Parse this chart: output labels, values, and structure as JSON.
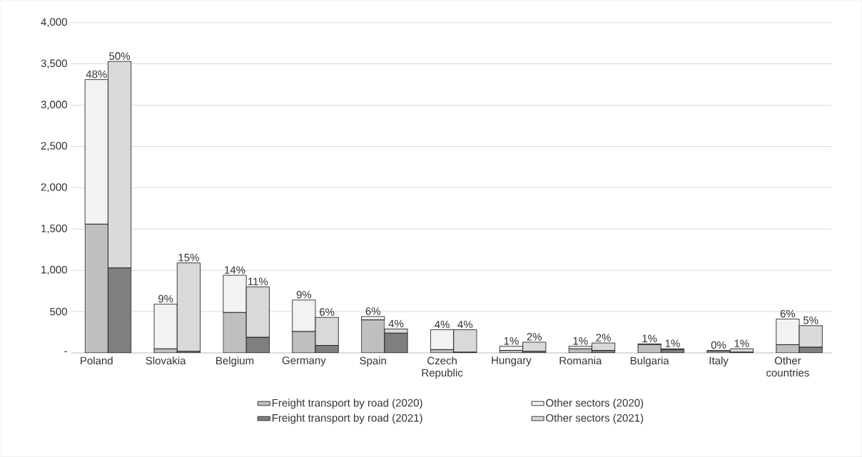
{
  "chart_data": {
    "type": "bar",
    "stacked": true,
    "grid": "y",
    "legend": "bottom",
    "categories": [
      "Poland",
      null,
      null,
      "Slovakia",
      null,
      null,
      "Belgium",
      null,
      null,
      "Germany",
      null,
      null,
      "Spain",
      null,
      null,
      "Czech Republic",
      null,
      null,
      "Hungary",
      null,
      null,
      "Romania",
      null,
      null,
      "Bulgaria",
      null,
      null,
      "Italy",
      null,
      null,
      "Other countries",
      null
    ],
    "ylim": [
      0,
      4000
    ],
    "yticks": [
      {
        "value": 0,
        "label": "-"
      },
      500,
      {
        "value": 1000,
        "label": "1,000"
      },
      {
        "value": 1500,
        "label": "1,500"
      },
      {
        "value": 2000,
        "label": "2,000"
      },
      {
        "value": 2500,
        "label": "2,500"
      },
      {
        "value": 3000,
        "label": "3,000"
      },
      {
        "value": 3500,
        "label": "3,500"
      },
      {
        "value": 4000,
        "label": "4,000"
      }
    ],
    "series": [
      {
        "name": "Freight transport by road (2020)",
        "color": "#bfbfbf",
        "values": [
          1560,
          null,
          null,
          50,
          null,
          null,
          490,
          null,
          null,
          260,
          null,
          null,
          400,
          null,
          null,
          40,
          null,
          null,
          30,
          null,
          null,
          50,
          null,
          null,
          100,
          null,
          null,
          20,
          null,
          null,
          100,
          null
        ]
      },
      {
        "name": "Other sectors (2020)",
        "color": "#f2f2f2",
        "values": [
          1750,
          null,
          null,
          540,
          null,
          null,
          450,
          null,
          null,
          380,
          null,
          null,
          40,
          null,
          null,
          240,
          null,
          null,
          50,
          null,
          null,
          30,
          null,
          null,
          10,
          null,
          null,
          10,
          null,
          null,
          310,
          null
        ]
      },
      {
        "name": "Freight transport by road (2021)",
        "color": "#7f7f7f",
        "values": [
          null,
          1030,
          null,
          null,
          20,
          null,
          null,
          190,
          null,
          null,
          90,
          null,
          null,
          240,
          null,
          null,
          10,
          null,
          null,
          20,
          null,
          null,
          30,
          null,
          null,
          40,
          null,
          null,
          10,
          null,
          null,
          70
        ]
      },
      {
        "name": "Other sectors (2021)",
        "color": "#d9d9d9",
        "values": [
          null,
          2500,
          null,
          null,
          1070,
          null,
          null,
          610,
          null,
          null,
          340,
          null,
          null,
          50,
          null,
          null,
          270,
          null,
          null,
          110,
          null,
          null,
          90,
          null,
          null,
          10,
          null,
          null,
          40,
          null,
          null,
          260
        ]
      }
    ],
    "annotations": [
      {
        "text": "48%",
        "y": 3310
      },
      {
        "text": "50%",
        "y": 3530
      },
      {
        "text": "9%",
        "y": 590
      },
      {
        "text": "15%",
        "y": 1090
      },
      {
        "text": "14%",
        "y": 940
      },
      {
        "text": "11%",
        "y": 800
      },
      {
        "text": "9%",
        "y": 640
      },
      {
        "text": "6%",
        "y": 430
      },
      {
        "text": "6%",
        "y": 440
      },
      {
        "text": "4%",
        "y": 290
      },
      {
        "text": "4%",
        "y": 280
      },
      {
        "text": "4%",
        "y": 280
      },
      {
        "text": "1%",
        "y": 80
      },
      {
        "text": "2%",
        "y": 130
      },
      {
        "text": "1%",
        "y": 80
      },
      {
        "text": "2%",
        "y": 120
      },
      {
        "text": "1%",
        "y": 110
      },
      {
        "text": "1%",
        "y": 50
      },
      {
        "text": "0%",
        "y": 30
      },
      {
        "text": "1%",
        "y": 50
      },
      {
        "text": "6%",
        "y": 410
      },
      {
        "text": "5%",
        "y": 330
      }
    ]
  }
}
